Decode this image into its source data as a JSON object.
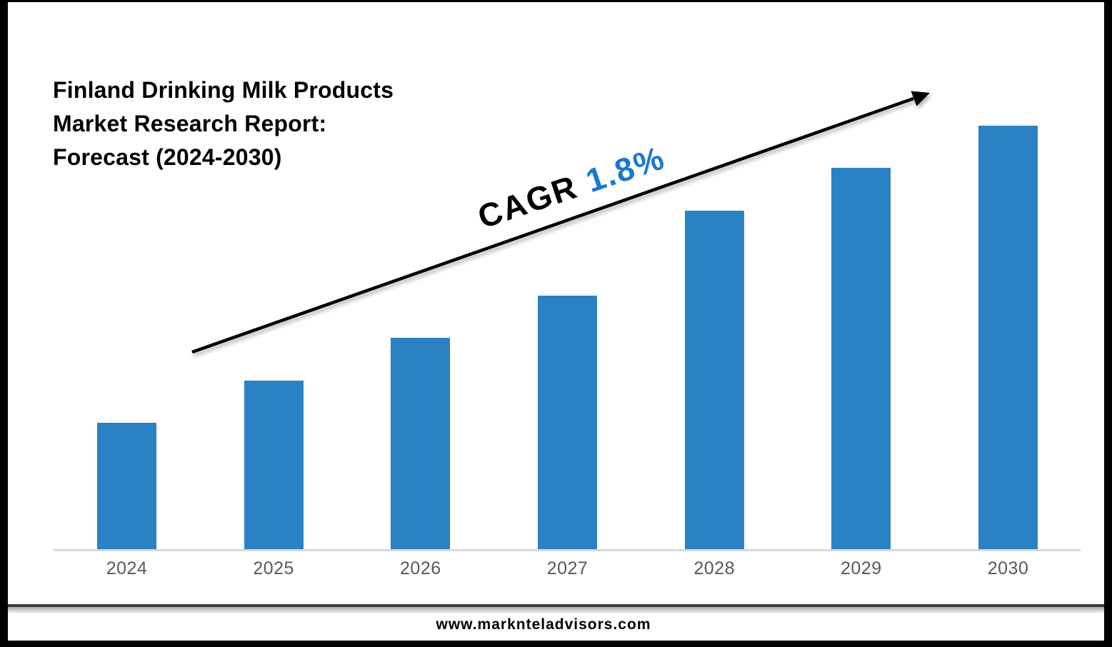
{
  "header": {
    "title_lines": [
      "Finland Drinking Milk Products",
      "Market Research Report:",
      "Forecast (2024-2030)"
    ]
  },
  "annotation": {
    "label": "CAGR",
    "value": "1.8%"
  },
  "footer": {
    "url": "www.marknteladvisors.com"
  },
  "colors": {
    "bar": "#2A82C5",
    "annotation_value": "#1B78CE",
    "axis_line": "#D9D9D9",
    "tick_label": "#595959",
    "arrow": "#000000",
    "frame_border": "#000000",
    "footer_divider": "#3B3B3B"
  },
  "chart_data": {
    "type": "bar",
    "title": "Finland Drinking Milk Products Market Research Report: Forecast (2024-2030)",
    "categories": [
      "2024",
      "2025",
      "2026",
      "2027",
      "2028",
      "2029",
      "2030"
    ],
    "values": [
      30,
      40,
      50,
      60,
      80,
      90,
      100
    ],
    "values_note": "No numeric y-axis or data labels are shown; values are relative bar heights normalized to 2030 = 100.",
    "xlabel": "",
    "ylabel": "",
    "ylim": [
      0,
      105
    ],
    "grid": false,
    "legend": "none",
    "annotations": [
      "CAGR 1.8%",
      "upward trend arrow from 2024 area to above 2030 bar"
    ]
  }
}
